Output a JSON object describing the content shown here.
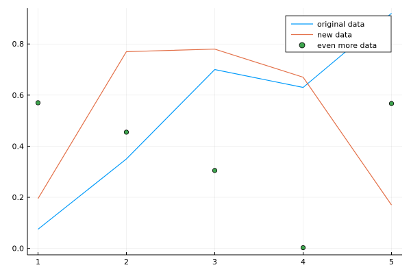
{
  "chart_data": {
    "type": "line",
    "x": [
      1,
      2,
      3,
      4,
      5
    ],
    "xlim": [
      0.88,
      5.12
    ],
    "ylim": [
      -0.025,
      0.94
    ],
    "x_ticks": [
      1,
      2,
      3,
      4,
      5
    ],
    "y_ticks": [
      0.0,
      0.2,
      0.4,
      0.6,
      0.8
    ],
    "x_tick_labels": [
      "1",
      "2",
      "3",
      "4",
      "5"
    ],
    "y_tick_labels": [
      "0.0",
      "0.2",
      "0.4",
      "0.6",
      "0.8"
    ],
    "grid": true,
    "legend_position": "top-right",
    "series": [
      {
        "name": "original data",
        "kind": "line",
        "color": "#009AFA",
        "y": [
          0.075,
          0.35,
          0.7,
          0.63,
          0.92
        ]
      },
      {
        "name": "new data",
        "kind": "line",
        "color": "#E36F47",
        "y": [
          0.195,
          0.77,
          0.78,
          0.67,
          0.17
        ]
      },
      {
        "name": "even more data",
        "kind": "scatter",
        "color": "#3EA44E",
        "y": [
          0.57,
          0.455,
          0.305,
          0.003,
          0.567
        ]
      }
    ]
  }
}
